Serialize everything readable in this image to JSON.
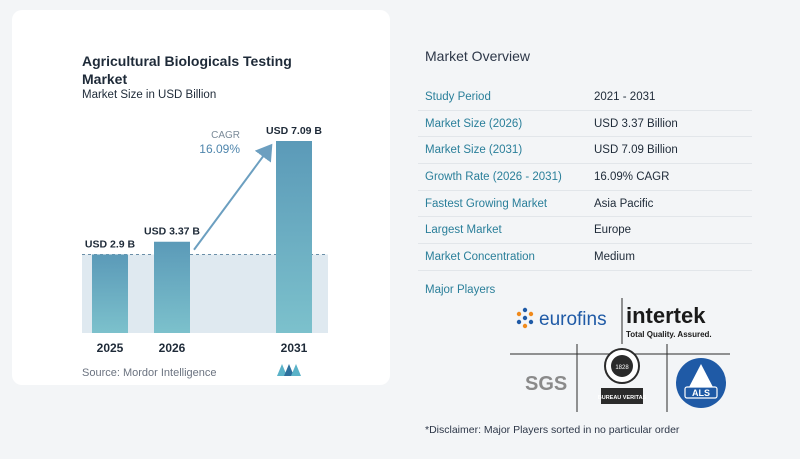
{
  "chart_data": {
    "type": "bar",
    "title": "Agricultural Biologicals Testing Market",
    "subtitle": "Market Size in USD Billion",
    "categories": [
      "2025",
      "2026",
      "2031"
    ],
    "values": [
      2.9,
      3.37,
      7.09
    ],
    "value_labels": [
      "USD 2.9 B",
      "USD 3.37 B",
      "USD 7.09 B"
    ],
    "cagr_label": "CAGR",
    "cagr_value": "16.09%",
    "ylim": [
      0,
      7.09
    ],
    "grid": false,
    "colors": {
      "bar_top": "#5b9ab8",
      "bar_bottom": "#7cc1cc",
      "band": "#dfe9f0",
      "arrow": "#6c9fc0",
      "dashed": "#6b8fa8"
    }
  },
  "source": "Source:  Mordor Intelligence",
  "overview": {
    "title": "Market Overview",
    "rows": [
      {
        "label": "Study Period",
        "value": "2021 - 2031"
      },
      {
        "label": "Market Size (2026)",
        "value": "USD 3.37 Billion"
      },
      {
        "label": "Market Size (2031)",
        "value": "USD 7.09 Billion"
      },
      {
        "label": "Growth Rate (2026 - 2031)",
        "value": "16.09% CAGR"
      },
      {
        "label": "Fastest Growing Market",
        "value": "Asia Pacific"
      },
      {
        "label": "Largest Market",
        "value": "Europe"
      },
      {
        "label": "Market Concentration",
        "value": "Medium"
      }
    ]
  },
  "players": {
    "title": "Major Players",
    "logos": {
      "eurofins": "eurofins",
      "intertek": "intertek",
      "intertek_tagline": "Total Quality. Assured.",
      "sgs": "SGS",
      "bureau_veritas": "BUREAU VERITAS",
      "bureau_veritas_year": "1828",
      "als": "ALS"
    }
  },
  "disclaimer": "*Disclaimer: Major Players sorted in no particular order"
}
